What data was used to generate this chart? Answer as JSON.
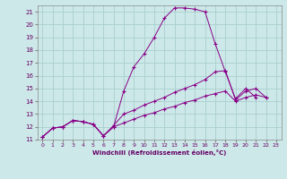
{
  "xlabel": "Windchill (Refroidissement éolien,°C)",
  "bg_color": "#cce8e8",
  "grid_color": "#aacece",
  "line_color": "#880088",
  "xlim": [
    -0.5,
    23.5
  ],
  "ylim": [
    11,
    21.5
  ],
  "yticks": [
    11,
    12,
    13,
    14,
    15,
    16,
    17,
    18,
    19,
    20,
    21
  ],
  "xticks": [
    0,
    1,
    2,
    3,
    4,
    5,
    6,
    7,
    8,
    9,
    10,
    11,
    12,
    13,
    14,
    15,
    16,
    17,
    18,
    19,
    20,
    21,
    22,
    23
  ],
  "series": [
    {
      "x": [
        0,
        1,
        2,
        3,
        4,
        5,
        6,
        7,
        8,
        9,
        10,
        11,
        12,
        13,
        14,
        15,
        16,
        17,
        18,
        19,
        20,
        21
      ],
      "y": [
        11.2,
        11.9,
        12.0,
        12.5,
        12.4,
        12.2,
        11.3,
        12.0,
        14.8,
        16.7,
        17.7,
        19.0,
        20.5,
        21.3,
        21.3,
        21.2,
        21.0,
        18.5,
        16.3,
        14.2,
        15.0,
        14.3
      ]
    },
    {
      "x": [
        0,
        1,
        2,
        3,
        4,
        5,
        6,
        7,
        8,
        9,
        10,
        11,
        12,
        13,
        14,
        15,
        16,
        17,
        18,
        19,
        20,
        21,
        22
      ],
      "y": [
        11.2,
        11.9,
        12.0,
        12.5,
        12.4,
        12.2,
        11.3,
        12.1,
        13.0,
        13.3,
        13.7,
        14.0,
        14.3,
        14.7,
        15.0,
        15.3,
        15.7,
        16.3,
        16.4,
        14.1,
        14.8,
        15.0,
        14.3
      ]
    },
    {
      "x": [
        0,
        1,
        2,
        3,
        4,
        5,
        6,
        7,
        8,
        9,
        10,
        11,
        12,
        13,
        14,
        15,
        16,
        17,
        18,
        19,
        20,
        21,
        22
      ],
      "y": [
        11.2,
        11.9,
        12.0,
        12.5,
        12.4,
        12.2,
        11.3,
        12.0,
        12.3,
        12.6,
        12.9,
        13.1,
        13.4,
        13.6,
        13.9,
        14.1,
        14.4,
        14.6,
        14.8,
        14.0,
        14.3,
        14.5,
        14.3
      ]
    }
  ]
}
